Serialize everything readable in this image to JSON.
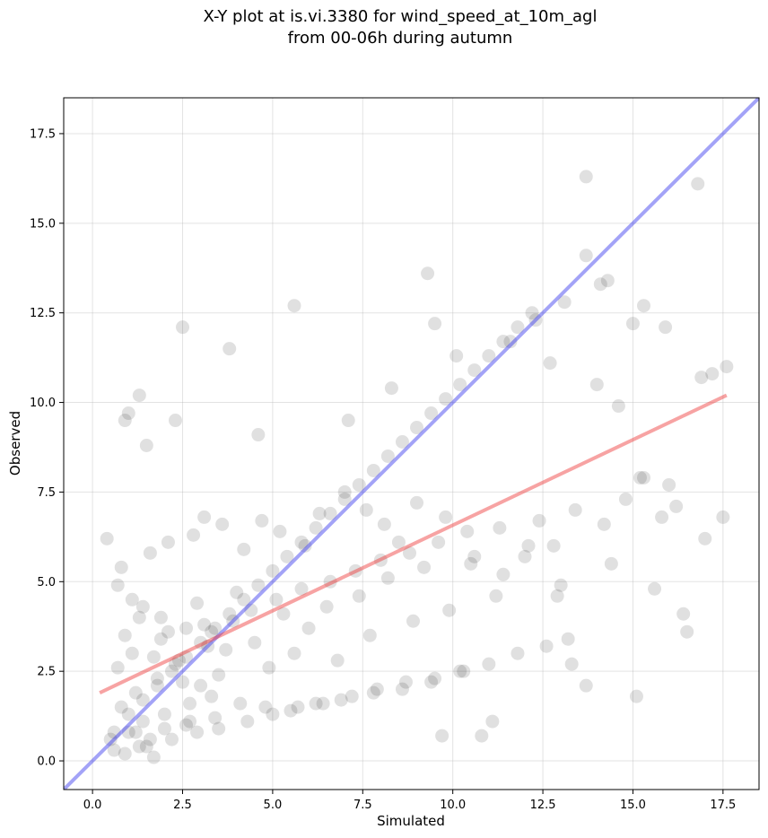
{
  "chart_data": {
    "type": "scatter",
    "title_line1": "X-Y plot at is.vi.3380 for wind_speed_at_10m_agl",
    "title_line2": "from 00-06h during autumn",
    "xlabel": "Simulated",
    "ylabel": "Observed",
    "xlim": [
      -0.8,
      18.5
    ],
    "ylim": [
      -0.8,
      18.5
    ],
    "xticks": [
      0.0,
      2.5,
      5.0,
      7.5,
      10.0,
      12.5,
      15.0,
      17.5
    ],
    "yticks": [
      0.0,
      2.5,
      5.0,
      7.5,
      10.0,
      12.5,
      15.0,
      17.5
    ],
    "xtick_labels": [
      "0.0",
      "2.5",
      "5.0",
      "7.5",
      "10.0",
      "12.5",
      "15.0",
      "17.5"
    ],
    "ytick_labels": [
      "0.0",
      "2.5",
      "5.0",
      "7.5",
      "10.0",
      "12.5",
      "15.0",
      "17.5"
    ],
    "grid": true,
    "colors": {
      "points": "#000000",
      "identity_line": "#3333ee",
      "regression_line": "#ee3333"
    },
    "lines": {
      "identity": {
        "x": [
          -0.8,
          18.5
        ],
        "y": [
          -0.8,
          18.5
        ]
      },
      "regression": {
        "x": [
          0.2,
          17.6
        ],
        "y": [
          1.9,
          10.2
        ]
      }
    },
    "points": {
      "x": [
        13.7,
        16.8,
        9.3,
        13.7,
        14.3,
        9.5,
        5.6,
        2.5,
        3.8,
        1.3,
        0.9,
        1.0,
        13.1,
        12.3,
        15.0,
        15.9,
        14.1,
        15.3,
        17.6,
        17.2,
        16.9,
        16.5,
        15.8,
        15.1,
        13.7,
        13.3,
        12.9,
        17.5,
        15.2,
        11.1,
        10.8,
        9.7,
        1.5,
        2.3,
        4.6,
        7.1,
        8.3,
        10.1,
        11.6,
        12.7,
        14.0,
        14.6,
        15.3,
        16.2,
        16.0,
        14.8,
        14.2,
        12.8,
        12.0,
        11.4,
        10.5,
        9.8,
        9.0,
        8.5,
        8.1,
        7.6,
        7.0,
        6.3,
        5.9,
        5.2,
        4.7,
        4.2,
        3.6,
        3.1,
        2.8,
        2.1,
        1.6,
        0.8,
        0.4,
        0.7,
        1.1,
        1.4,
        1.9,
        2.6,
        3.3,
        3.9,
        4.4,
        5.1,
        5.8,
        6.6,
        7.3,
        8.0,
        8.8,
        9.6,
        10.4,
        11.3,
        12.4,
        13.4,
        10.2,
        9.4,
        8.6,
        7.8,
        6.9,
        6.2,
        5.5,
        4.8,
        4.1,
        3.4,
        2.7,
        2.0,
        1.2,
        0.5,
        0.6,
        0.9,
        1.3,
        1.7,
        2.2,
        2.9,
        3.5,
        4.3,
        5.0,
        5.7,
        6.4,
        7.2,
        7.9,
        8.7,
        9.5,
        10.3,
        11.0,
        11.8,
        12.6,
        13.2,
        0.8,
        1.0,
        1.2,
        1.4,
        1.6,
        1.8,
        2.0,
        2.4,
        2.6,
        3.0,
        3.2,
        0.7,
        1.1,
        1.5,
        1.9,
        2.3,
        2.7,
        3.1,
        3.5,
        0.9,
        1.3,
        1.7,
        2.1,
        2.5,
        2.9,
        3.3,
        3.7,
        4.0,
        4.5,
        4.9,
        5.3,
        5.6,
        6.0,
        6.5,
        6.8,
        7.4,
        7.7,
        8.2,
        8.9,
        9.2,
        9.9,
        10.6,
        11.2,
        12.1,
        13.0,
        14.4,
        15.6,
        16.4,
        17.0,
        0.6,
        1.0,
        1.4,
        1.8,
        2.2,
        2.6,
        3.0,
        3.4,
        3.8,
        4.2,
        4.6,
        5.0,
        5.4,
        5.8,
        6.2,
        6.6,
        7.0,
        7.4,
        7.8,
        8.2,
        8.6,
        9.0,
        9.4,
        9.8,
        10.2,
        10.6,
        11.0,
        11.4,
        11.8,
        12.2
      ],
      "y": [
        16.3,
        16.1,
        13.6,
        14.1,
        13.4,
        12.2,
        12.7,
        12.1,
        11.5,
        10.2,
        9.5,
        9.7,
        12.8,
        12.3,
        12.2,
        12.1,
        13.3,
        12.7,
        11.0,
        10.8,
        10.7,
        3.6,
        6.8,
        1.8,
        2.1,
        2.7,
        4.6,
        6.8,
        7.9,
        1.1,
        0.7,
        0.7,
        8.8,
        9.5,
        9.1,
        9.5,
        10.4,
        11.3,
        11.7,
        11.1,
        10.5,
        9.9,
        7.9,
        7.1,
        7.7,
        7.3,
        6.6,
        6.0,
        5.7,
        5.2,
        5.5,
        6.8,
        7.2,
        6.1,
        6.6,
        7.0,
        7.5,
        6.9,
        6.0,
        6.4,
        6.7,
        5.9,
        6.6,
        6.8,
        6.3,
        6.1,
        5.8,
        5.4,
        6.2,
        4.9,
        4.5,
        4.3,
        4.0,
        3.7,
        3.6,
        3.9,
        4.2,
        4.5,
        4.8,
        5.0,
        5.3,
        5.6,
        5.8,
        6.1,
        6.4,
        6.5,
        6.7,
        7.0,
        2.5,
        2.2,
        2.0,
        1.9,
        1.7,
        1.6,
        1.4,
        1.5,
        1.6,
        1.2,
        1.1,
        0.9,
        0.8,
        0.6,
        0.3,
        0.2,
        0.4,
        0.1,
        0.6,
        0.8,
        0.9,
        1.1,
        1.3,
        1.5,
        1.6,
        1.8,
        2.0,
        2.2,
        2.3,
        2.5,
        2.7,
        3.0,
        3.2,
        3.4,
        1.5,
        0.8,
        1.9,
        1.1,
        0.6,
        2.3,
        1.3,
        2.8,
        1.0,
        2.1,
        3.2,
        2.6,
        3.0,
        0.4,
        3.4,
        2.7,
        1.6,
        3.8,
        2.4,
        3.5,
        4.0,
        2.9,
        3.6,
        2.2,
        4.4,
        1.8,
        3.1,
        4.7,
        3.3,
        2.6,
        4.1,
        3.0,
        3.7,
        4.3,
        2.8,
        4.6,
        3.5,
        5.1,
        3.9,
        5.4,
        4.2,
        5.7,
        4.6,
        6.0,
        4.9,
        5.5,
        4.8,
        4.1,
        6.2,
        0.8,
        1.3,
        1.7,
        2.1,
        2.5,
        2.9,
        3.3,
        3.7,
        4.1,
        4.5,
        4.9,
        5.3,
        5.7,
        6.1,
        6.5,
        6.9,
        7.3,
        7.7,
        8.1,
        8.5,
        8.9,
        9.3,
        9.7,
        10.1,
        10.5,
        10.9,
        11.3,
        11.7,
        12.1,
        12.5
      ]
    }
  }
}
